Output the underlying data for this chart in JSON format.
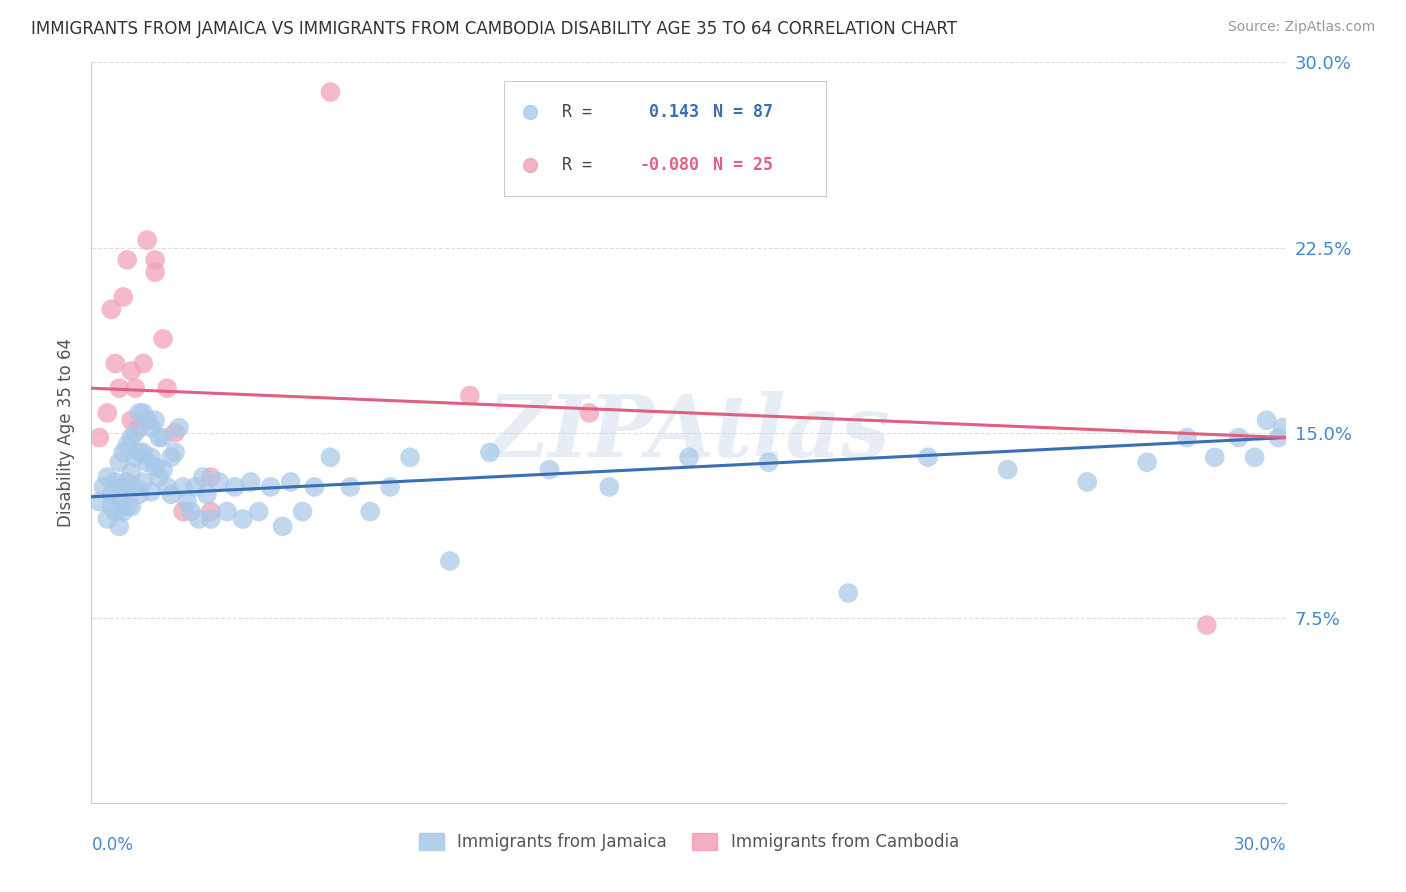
{
  "title": "IMMIGRANTS FROM JAMAICA VS IMMIGRANTS FROM CAMBODIA DISABILITY AGE 35 TO 64 CORRELATION CHART",
  "source": "Source: ZipAtlas.com",
  "ylabel": "Disability Age 35 to 64",
  "ytick_values": [
    0.0,
    0.075,
    0.15,
    0.225,
    0.3
  ],
  "ytick_labels": [
    "",
    "7.5%",
    "15.0%",
    "22.5%",
    "30.0%"
  ],
  "xlim": [
    0.0,
    0.3
  ],
  "ylim": [
    0.0,
    0.3
  ],
  "r_jamaica": " 0.143",
  "n_jamaica": "87",
  "r_cambodia": "-0.080",
  "n_cambodia": "25",
  "color_jamaica_fill": "#A8C8E8",
  "color_cambodia_fill": "#F2A0B5",
  "color_line_jamaica": "#3B6FB5",
  "color_line_cambodia": "#E06080",
  "watermark": "ZIPAtlas",
  "jamaica_x": [
    0.002,
    0.003,
    0.004,
    0.004,
    0.005,
    0.005,
    0.006,
    0.006,
    0.007,
    0.007,
    0.007,
    0.008,
    0.008,
    0.008,
    0.009,
    0.009,
    0.009,
    0.01,
    0.01,
    0.01,
    0.011,
    0.011,
    0.011,
    0.012,
    0.012,
    0.012,
    0.013,
    0.013,
    0.013,
    0.014,
    0.014,
    0.015,
    0.015,
    0.015,
    0.016,
    0.016,
    0.017,
    0.017,
    0.018,
    0.018,
    0.019,
    0.02,
    0.02,
    0.021,
    0.022,
    0.023,
    0.024,
    0.025,
    0.026,
    0.027,
    0.028,
    0.029,
    0.03,
    0.032,
    0.034,
    0.036,
    0.038,
    0.04,
    0.042,
    0.045,
    0.048,
    0.05,
    0.053,
    0.056,
    0.06,
    0.065,
    0.07,
    0.075,
    0.08,
    0.09,
    0.1,
    0.115,
    0.13,
    0.15,
    0.17,
    0.19,
    0.21,
    0.23,
    0.25,
    0.265,
    0.275,
    0.282,
    0.288,
    0.292,
    0.295,
    0.298,
    0.299
  ],
  "jamaica_y": [
    0.122,
    0.128,
    0.115,
    0.132,
    0.12,
    0.125,
    0.118,
    0.13,
    0.112,
    0.138,
    0.124,
    0.142,
    0.128,
    0.118,
    0.145,
    0.13,
    0.12,
    0.148,
    0.134,
    0.12,
    0.15,
    0.14,
    0.128,
    0.158,
    0.142,
    0.125,
    0.158,
    0.142,
    0.13,
    0.155,
    0.138,
    0.152,
    0.14,
    0.126,
    0.155,
    0.136,
    0.148,
    0.132,
    0.148,
    0.135,
    0.128,
    0.14,
    0.125,
    0.142,
    0.152,
    0.128,
    0.122,
    0.118,
    0.128,
    0.115,
    0.132,
    0.125,
    0.115,
    0.13,
    0.118,
    0.128,
    0.115,
    0.13,
    0.118,
    0.128,
    0.112,
    0.13,
    0.118,
    0.128,
    0.14,
    0.128,
    0.118,
    0.128,
    0.14,
    0.098,
    0.142,
    0.135,
    0.128,
    0.14,
    0.138,
    0.085,
    0.14,
    0.135,
    0.13,
    0.138,
    0.148,
    0.14,
    0.148,
    0.14,
    0.155,
    0.148,
    0.152
  ],
  "cambodia_x": [
    0.002,
    0.004,
    0.005,
    0.006,
    0.007,
    0.008,
    0.009,
    0.01,
    0.01,
    0.011,
    0.012,
    0.013,
    0.014,
    0.016,
    0.016,
    0.018,
    0.019,
    0.021,
    0.023,
    0.03,
    0.03,
    0.06,
    0.095,
    0.125,
    0.28
  ],
  "cambodia_y": [
    0.148,
    0.158,
    0.2,
    0.178,
    0.168,
    0.205,
    0.22,
    0.175,
    0.155,
    0.168,
    0.152,
    0.178,
    0.228,
    0.22,
    0.215,
    0.188,
    0.168,
    0.15,
    0.118,
    0.132,
    0.118,
    0.288,
    0.165,
    0.158,
    0.072
  ],
  "line_jamaica_x0": 0.0,
  "line_jamaica_y0": 0.124,
  "line_jamaica_x1": 0.3,
  "line_jamaica_y1": 0.148,
  "line_cambodia_x0": 0.0,
  "line_cambodia_y0": 0.168,
  "line_cambodia_x1": 0.3,
  "line_cambodia_y1": 0.148
}
